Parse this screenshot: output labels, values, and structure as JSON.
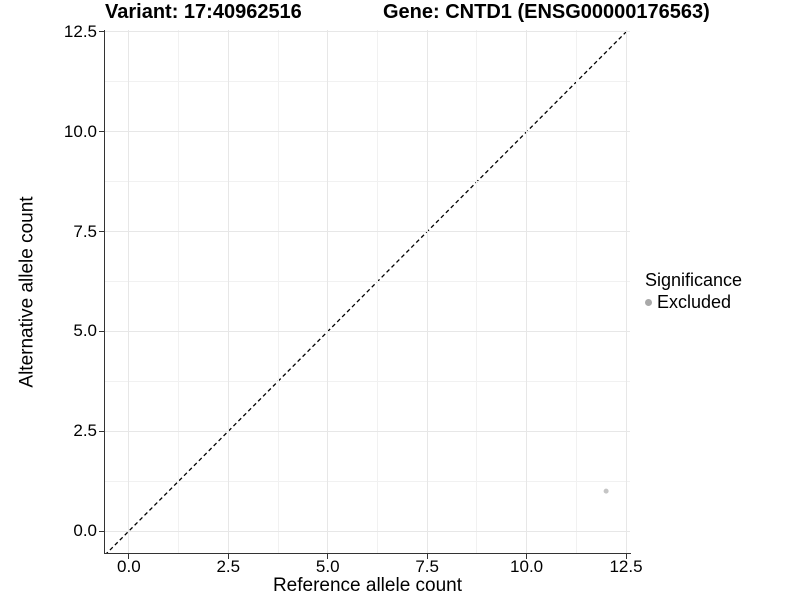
{
  "header": {
    "title_left": "Variant: 17:40962516",
    "title_right": "Gene: CNTD1 (ENSG00000176563)"
  },
  "chart_data": {
    "type": "scatter",
    "title_left": "Variant: 17:40962516",
    "title_right": "Gene: CNTD1 (ENSG00000176563)",
    "xlabel": "Reference allele count",
    "ylabel": "Alternative allele count",
    "xlim": [
      -0.6,
      12.6
    ],
    "ylim": [
      -0.55,
      12.55
    ],
    "x_ticks": {
      "values": [
        0,
        2.5,
        5,
        7.5,
        10,
        12.5
      ],
      "labels": [
        "0.0",
        "2.5",
        "5.0",
        "7.5",
        "10.0",
        "12.5"
      ]
    },
    "y_ticks": {
      "values": [
        0,
        2.5,
        5,
        7.5,
        10,
        12.5
      ],
      "labels": [
        "0.0",
        "2.5",
        "5.0",
        "7.5",
        "10.0",
        "12.5"
      ]
    },
    "minor_ticks": [
      1.25,
      3.75,
      6.25,
      8.75,
      11.25
    ],
    "grid": {
      "major_color": "#e7e7e7",
      "minor_color": "#f1f1f1",
      "shown": true
    },
    "reference_line": {
      "slope": 1,
      "intercept": 0,
      "linetype": "dashed",
      "color": "#000000"
    },
    "series": [
      {
        "name": "Excluded",
        "color": "#c5c5c5",
        "point_radius_px": 2.5,
        "points": [
          {
            "x": 12,
            "y": 1
          }
        ]
      }
    ],
    "legend": {
      "title": "Significance",
      "position": "right",
      "items": [
        {
          "label": "Excluded",
          "color": "#a9a9a9"
        }
      ]
    }
  }
}
